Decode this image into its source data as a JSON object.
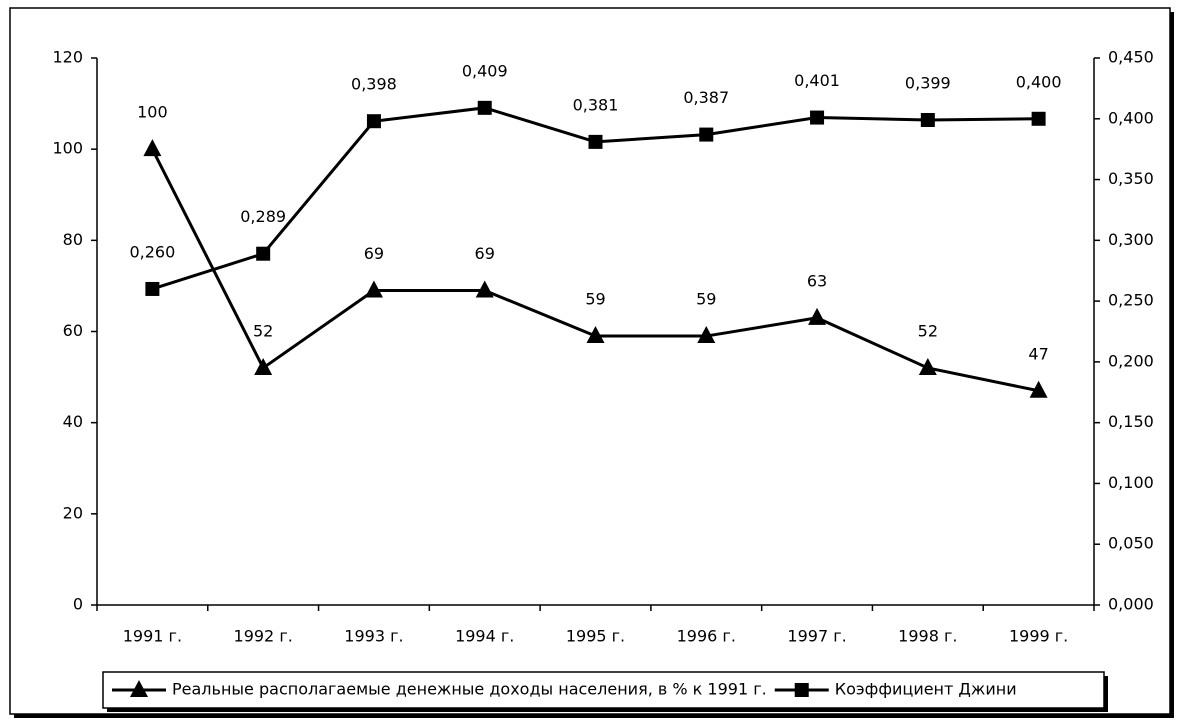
{
  "chart_data": {
    "type": "line",
    "categories": [
      "1991 г.",
      "1992 г.",
      "1993 г.",
      "1994 г.",
      "1995 г.",
      "1996 г.",
      "1997 г.",
      "1998 г.",
      "1999 г."
    ],
    "series": [
      {
        "name": "Реальные располагаемые денежные доходы населения, в % к 1991 г.",
        "color": "#000000",
        "marker": "triangle",
        "values": [
          100,
          52,
          69,
          69,
          59,
          59,
          63,
          52,
          47
        ]
      },
      {
        "name": "Коэффициент Джини",
        "color": "#000000",
        "marker": "square",
        "axis": "y2",
        "values": [
          0.26,
          0.289,
          0.398,
          0.409,
          0.381,
          0.387,
          0.401,
          0.399,
          0.4
        ],
        "value_labels": [
          "0,260",
          "0,289",
          "0,398",
          "0,409",
          "0,381",
          "0,387",
          "0,401",
          "0,399",
          "0,400"
        ]
      }
    ],
    "ylim": [
      0,
      120
    ],
    "yticks": [
      0,
      20,
      40,
      60,
      80,
      100,
      120
    ],
    "y2lim": [
      0,
      0.45
    ],
    "y2ticks": [
      {
        "value": 0,
        "label": "0,000"
      },
      {
        "value": 0.05,
        "label": "0,050"
      },
      {
        "value": 0.1,
        "label": "0,100"
      },
      {
        "value": 0.15,
        "label": "0,150"
      },
      {
        "value": 0.2,
        "label": "0,200"
      },
      {
        "value": 0.25,
        "label": "0,250"
      },
      {
        "value": 0.3,
        "label": "0,300"
      },
      {
        "value": 0.35,
        "label": "0,350"
      },
      {
        "value": 0.4,
        "label": "0,400"
      },
      {
        "value": 0.45,
        "label": "0,450"
      }
    ],
    "grid": false,
    "legend": "bottom"
  }
}
